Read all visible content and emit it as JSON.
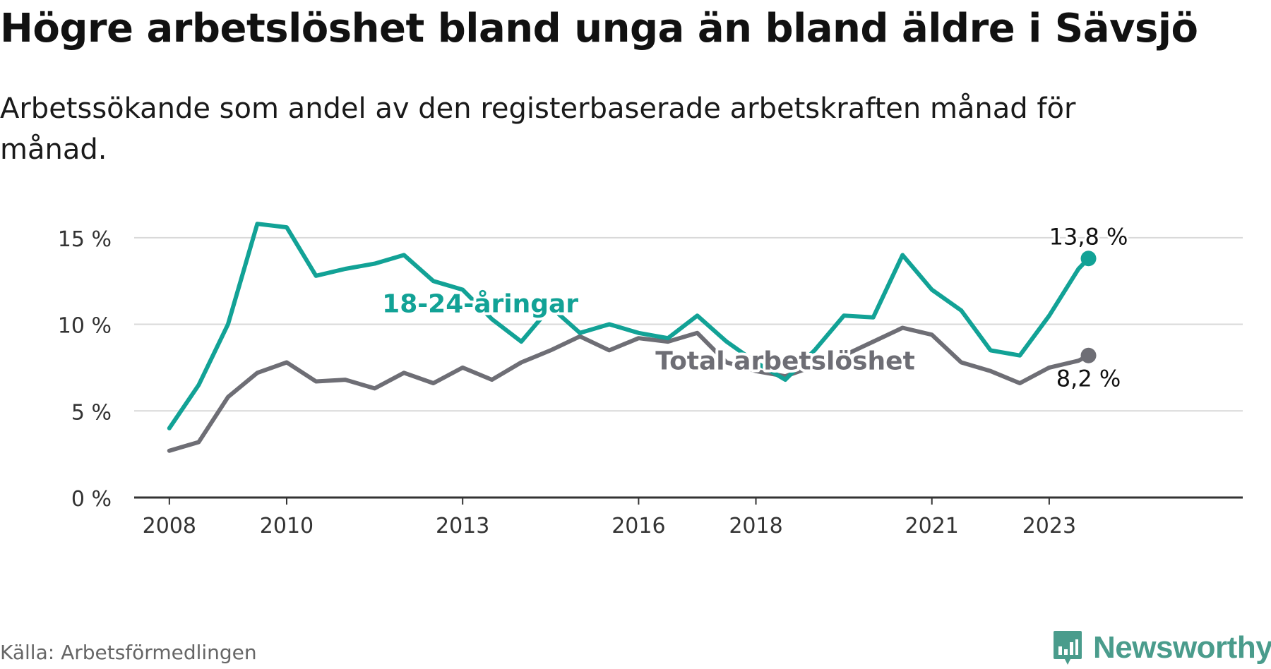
{
  "title": "Högre arbetslöshet bland unga än bland äldre i Sävsjö",
  "subtitle": "Arbetssökande som andel av den registerbaserade arbetskraften månad för månad.",
  "source": "Källa: Arbetsförmedlingen",
  "brand": "Newsworthy",
  "colors": {
    "youth": "#12a296",
    "total": "#6e6e75",
    "brand": "#4a9c8c",
    "grid": "#d9d9d9",
    "axis": "#333333"
  },
  "chart_data": {
    "type": "line",
    "title": "Högre arbetslöshet bland unga än bland äldre i Sävsjö",
    "xlabel": "",
    "ylabel": "",
    "ylim": [
      0,
      16.5
    ],
    "xlim": [
      2007.4,
      2026.3
    ],
    "yticks": [
      0,
      5,
      10,
      15
    ],
    "ytick_labels": [
      "0 %",
      "5 %",
      "10 %",
      "15 %"
    ],
    "xticks": [
      2008,
      2010,
      2013,
      2016,
      2018,
      2021,
      2023
    ],
    "xtick_labels": [
      "2008",
      "2010",
      "2013",
      "2016",
      "2018",
      "2021",
      "2023"
    ],
    "grid": true,
    "series": [
      {
        "name": "18-24-åringar",
        "label": "18-24-åringar",
        "end_label": "13,8 %",
        "x": [
          2008.0,
          2008.5,
          2009.0,
          2009.5,
          2010.0,
          2010.5,
          2011.0,
          2011.5,
          2012.0,
          2012.5,
          2013.0,
          2013.5,
          2014.0,
          2014.5,
          2015.0,
          2015.5,
          2016.0,
          2016.5,
          2017.0,
          2017.5,
          2018.0,
          2018.5,
          2019.0,
          2019.5,
          2020.0,
          2020.5,
          2021.0,
          2021.5,
          2022.0,
          2022.5,
          2023.0,
          2023.5,
          2023.67
        ],
        "values": [
          4.0,
          6.5,
          10.0,
          15.8,
          15.6,
          12.8,
          13.2,
          13.5,
          14.0,
          12.5,
          12.0,
          10.3,
          9.0,
          11.0,
          9.5,
          10.0,
          9.5,
          9.2,
          10.5,
          9.0,
          7.8,
          6.8,
          8.5,
          10.5,
          10.4,
          14.0,
          12.0,
          10.8,
          8.5,
          8.2,
          10.5,
          13.2,
          13.8
        ]
      },
      {
        "name": "Total arbetslöshet",
        "label": "Total arbetslöshet",
        "end_label": "8,2 %",
        "x": [
          2008.0,
          2008.5,
          2009.0,
          2009.5,
          2010.0,
          2010.5,
          2011.0,
          2011.5,
          2012.0,
          2012.5,
          2013.0,
          2013.5,
          2014.0,
          2014.5,
          2015.0,
          2015.5,
          2016.0,
          2016.5,
          2017.0,
          2017.5,
          2018.0,
          2018.5,
          2019.0,
          2019.5,
          2020.0,
          2020.5,
          2021.0,
          2021.5,
          2022.0,
          2022.5,
          2023.0,
          2023.5,
          2023.67
        ],
        "values": [
          2.7,
          3.2,
          5.8,
          7.2,
          7.8,
          6.7,
          6.8,
          6.3,
          7.2,
          6.6,
          7.5,
          6.8,
          7.8,
          8.5,
          9.3,
          8.5,
          9.2,
          9.0,
          9.5,
          7.8,
          7.3,
          7.0,
          7.6,
          8.2,
          9.0,
          9.8,
          9.4,
          7.8,
          7.3,
          6.6,
          7.5,
          7.9,
          8.2
        ]
      }
    ]
  }
}
